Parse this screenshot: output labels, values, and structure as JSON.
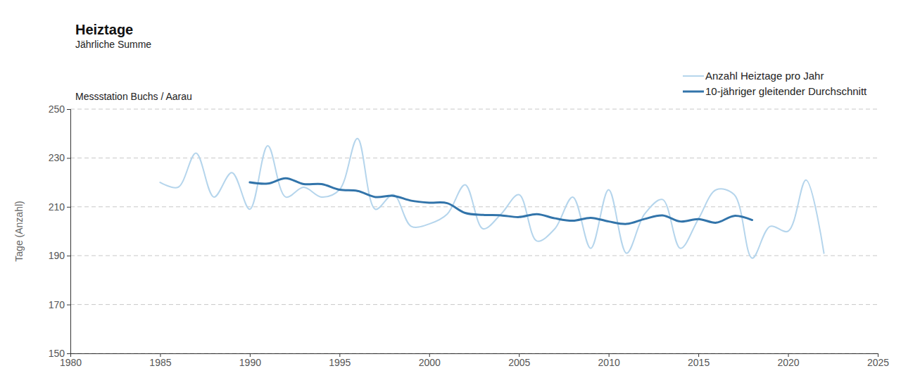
{
  "chart_data": {
    "type": "line",
    "title": "Heiztage",
    "subtitle": "Jährliche Summe",
    "annotation": "Messstation Buchs / Aarau",
    "y_label": "Tage (Anzahl)",
    "x": [
      1985,
      1986,
      1987,
      1988,
      1989,
      1990,
      1991,
      1992,
      1993,
      1994,
      1995,
      1996,
      1997,
      1998,
      1999,
      2000,
      2001,
      2002,
      2003,
      2004,
      2005,
      2006,
      2007,
      2008,
      2009,
      2010,
      2011,
      2012,
      2013,
      2014,
      2015,
      2016,
      2017,
      2018,
      2019,
      2020,
      2021,
      2022
    ],
    "series": [
      {
        "name": "Anzahl Heiztage pro Jahr",
        "color": "#b5d5ec",
        "values": [
          220,
          218,
          232,
          214,
          224,
          209,
          235,
          214,
          218,
          214,
          217,
          238,
          209,
          215,
          202,
          203,
          207,
          219,
          201,
          207,
          215,
          196,
          201,
          214,
          193,
          217,
          191,
          207,
          213,
          193,
          205,
          217,
          215,
          189,
          202,
          200,
          221,
          191
        ]
      },
      {
        "name": "10-jähriger gleitender Durchschnitt",
        "color": "#3274aa",
        "values": [
          null,
          null,
          null,
          null,
          null,
          220,
          219.5,
          221.7,
          219.3,
          219.3,
          217,
          216.5,
          214,
          214.5,
          212.5,
          211.7,
          211.5,
          207.5,
          206.7,
          206.5,
          205.8,
          207,
          205.3,
          204.3,
          205.5,
          204,
          203,
          205,
          206.5,
          204,
          205,
          203.5,
          206.3,
          204.6,
          null,
          null,
          null,
          null
        ]
      }
    ],
    "xlim": [
      1980,
      2025
    ],
    "xticks": [
      1980,
      1985,
      1990,
      1995,
      2000,
      2005,
      2010,
      2015,
      2020,
      2025
    ],
    "ylim": [
      150,
      250
    ],
    "yticks": [
      150,
      170,
      190,
      210,
      230,
      250
    ],
    "grid": true,
    "legend": "top-right"
  }
}
